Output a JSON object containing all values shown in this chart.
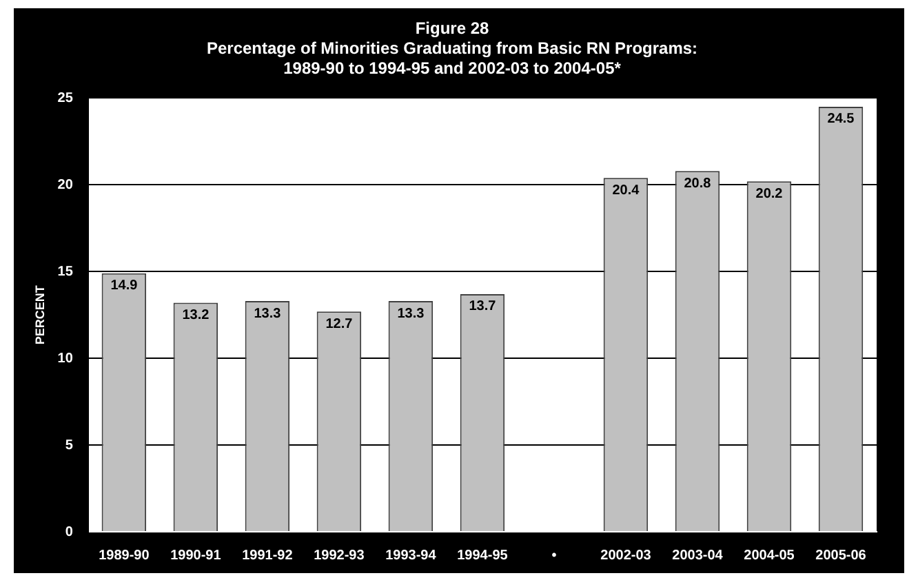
{
  "chart_data": {
    "type": "bar",
    "title": "Figure 28",
    "subtitle": "Percentage of Minorities Graduating from Basic RN Programs:\n1989-90 to 1994-95 and 2002-03 to 2004-05*",
    "ylabel": "PERCENT",
    "categories": [
      "1989-90",
      "1990-91",
      "1991-92",
      "1992-93",
      "1993-94",
      "1994-95",
      "•",
      "2002-03",
      "2003-04",
      "2004-05",
      "2005-06"
    ],
    "values": [
      14.9,
      13.2,
      13.3,
      12.7,
      13.3,
      13.7,
      null,
      20.4,
      20.8,
      20.2,
      24.5
    ],
    "color": "#c0c0c0",
    "ylim": [
      0,
      25
    ],
    "yticks": [
      0,
      5,
      10,
      15,
      20,
      25
    ],
    "grid": "y",
    "data_labels": true
  }
}
